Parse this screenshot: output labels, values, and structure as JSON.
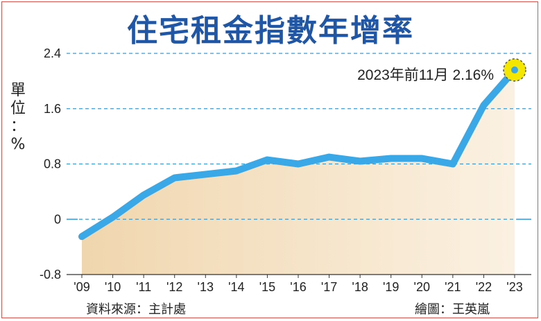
{
  "chart_data": {
    "type": "area",
    "title": "住宅租金指數年增率",
    "ylabel_chars": [
      "單",
      "位",
      "：",
      "%"
    ],
    "categories": [
      "'09",
      "'10",
      "'11",
      "'12",
      "'13",
      "'14",
      "'15",
      "'16",
      "'17",
      "'18",
      "'19",
      "'20",
      "'21",
      "'22",
      "'23"
    ],
    "values": [
      -0.25,
      0.03,
      0.35,
      0.6,
      0.65,
      0.7,
      0.86,
      0.8,
      0.9,
      0.84,
      0.88,
      0.88,
      0.8,
      1.65,
      2.16
    ],
    "yticks": [
      "2.4",
      "1.6",
      "0.8",
      "0",
      "-0.8"
    ],
    "ylim": [
      -0.8,
      2.4
    ],
    "grid": true,
    "annotation": "2023年前11月  2.16%",
    "source": "資料來源：主計處",
    "credit": "繪圖：王英嵐",
    "colors": {
      "line": "#3aa7e6",
      "area_top": "#f0d6ae",
      "area_bottom": "#fbf1e2",
      "grid": "#3a9bd5",
      "highlight": "#f5e600",
      "title": "#1f56a6"
    }
  }
}
